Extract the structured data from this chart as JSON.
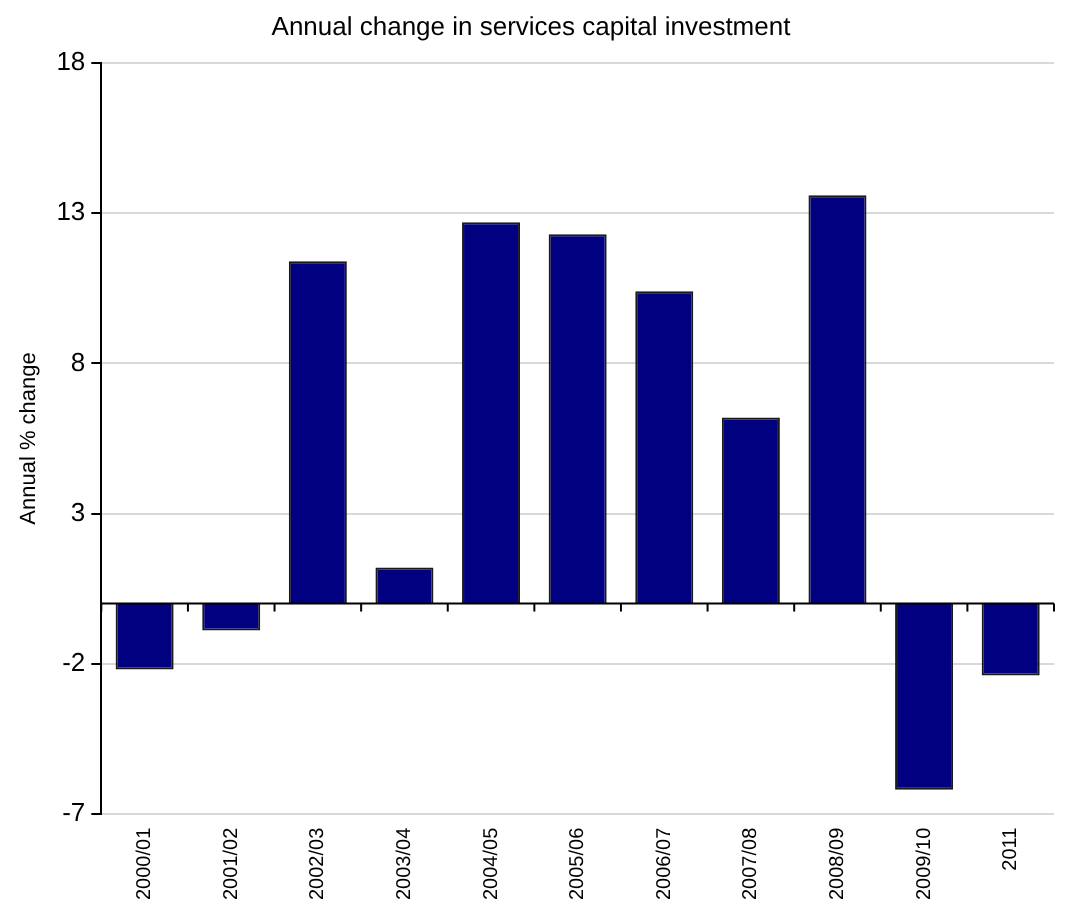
{
  "chart_data": {
    "type": "bar",
    "title": "Annual change in services capital investment",
    "ylabel": "Annual % change",
    "categories": [
      "2000/01",
      "2001/02",
      "2002/03",
      "2003/04",
      "2004/05",
      "2005/06",
      "2006/07",
      "2007/08",
      "2008/09",
      "2009/10",
      "2011"
    ],
    "values": [
      -2.2,
      -0.9,
      11.4,
      1.2,
      12.7,
      12.3,
      10.4,
      6.2,
      13.6,
      -6.2,
      -2.4
    ],
    "color": "#000080",
    "ylim": [
      -7,
      18
    ],
    "yticks": [
      -7,
      -2,
      3,
      8,
      13,
      18
    ],
    "grid": "y",
    "legend": false
  }
}
